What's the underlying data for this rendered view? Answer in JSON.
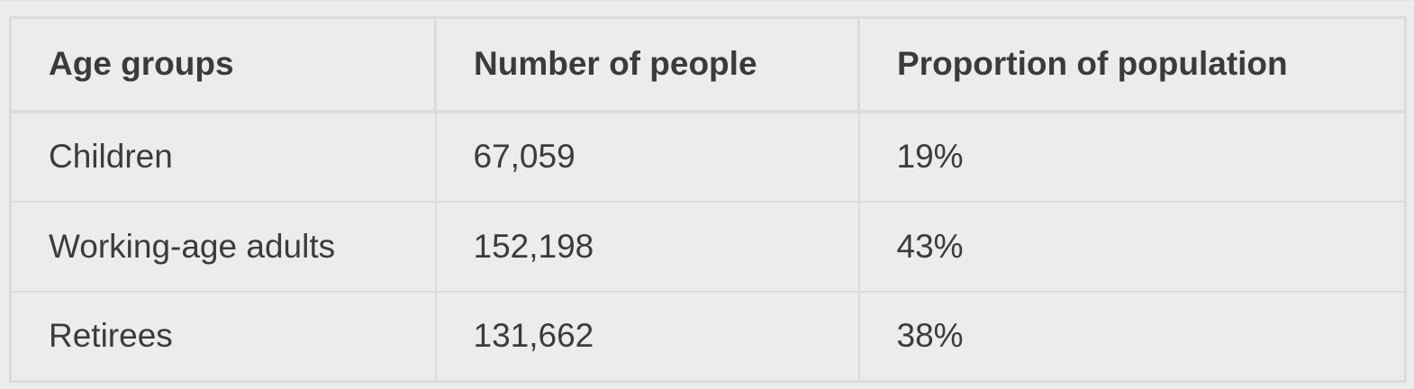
{
  "table": {
    "headers": [
      "Age groups",
      "Number of people",
      "Proportion of population"
    ],
    "rows": [
      [
        "Children",
        "67,059",
        "19%"
      ],
      [
        "Working-age adults",
        "152,198",
        "43%"
      ],
      [
        "Retirees",
        "131,662",
        "38%"
      ]
    ]
  },
  "colors": {
    "background": "#ececec",
    "border": "#dcdcdc",
    "text": "#3b3b3b"
  }
}
